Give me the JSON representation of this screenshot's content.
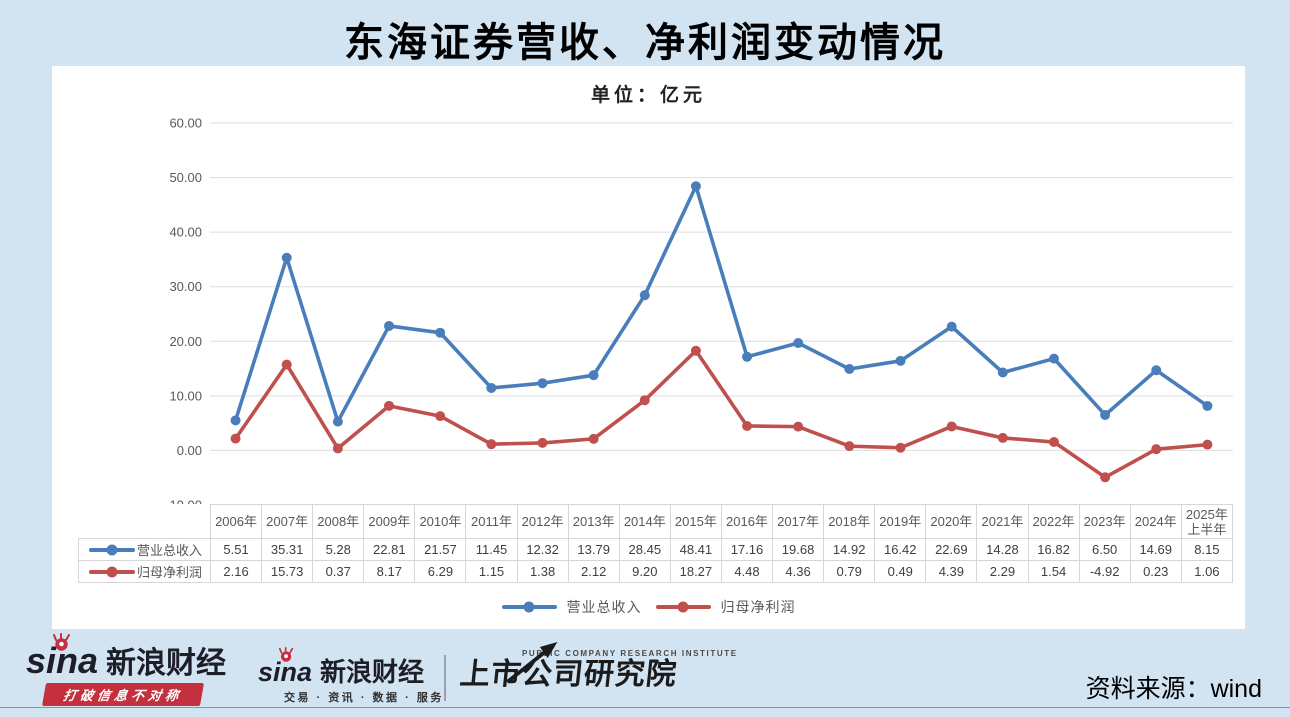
{
  "page": {
    "title": "东海证券营收、净利润变动情况",
    "background_color": "#d2e4f2"
  },
  "chart": {
    "subtitle": "单位：亿元"
  },
  "chart_data": {
    "type": "line",
    "title": "东海证券营收、净利润变动情况",
    "unit_label": "单位：亿元",
    "categories": [
      "2006年",
      "2007年",
      "2008年",
      "2009年",
      "2010年",
      "2011年",
      "2012年",
      "2013年",
      "2014年",
      "2015年",
      "2016年",
      "2017年",
      "2018年",
      "2019年",
      "2020年",
      "2021年",
      "2022年",
      "2023年",
      "2024年",
      "2025年上半年"
    ],
    "series": [
      {
        "name": "营业总收入",
        "color": "#4A7EBB",
        "values": [
          5.51,
          35.31,
          5.28,
          22.81,
          21.57,
          11.45,
          12.32,
          13.79,
          28.45,
          48.41,
          17.16,
          19.68,
          14.92,
          16.42,
          22.69,
          14.28,
          16.82,
          6.5,
          14.69,
          8.15
        ]
      },
      {
        "name": "归母净利润",
        "color": "#C0504D",
        "values": [
          2.16,
          15.73,
          0.37,
          8.17,
          6.29,
          1.15,
          1.38,
          2.12,
          9.2,
          18.27,
          4.48,
          4.36,
          0.79,
          0.49,
          4.39,
          2.29,
          1.54,
          -4.92,
          0.23,
          1.06
        ]
      }
    ],
    "ylim": [
      -10,
      60
    ],
    "yticks": [
      "60.00",
      "50.00",
      "40.00",
      "30.00",
      "20.00",
      "10.00",
      "0.00",
      "-10.00"
    ],
    "grid": true,
    "legend_position": "bottom",
    "marker": "circle",
    "gridline_color": "#dddddd",
    "tick_color": "#595959"
  },
  "footer": {
    "sina_main": {
      "brand": "sina",
      "brand_cn": "新浪财经",
      "slogan": "打破信息不对称"
    },
    "sina_sub": {
      "brand": "sina",
      "brand_cn": "新浪财经",
      "tagline": "交易 · 资讯 · 数据 · 服务"
    },
    "pcri": {
      "en": "PUBLIC COMPANY RESEARCH INSTITUTE",
      "cn": "上市公司研究院"
    },
    "source": "资料来源：wind",
    "brand_red": "#c5303e"
  }
}
